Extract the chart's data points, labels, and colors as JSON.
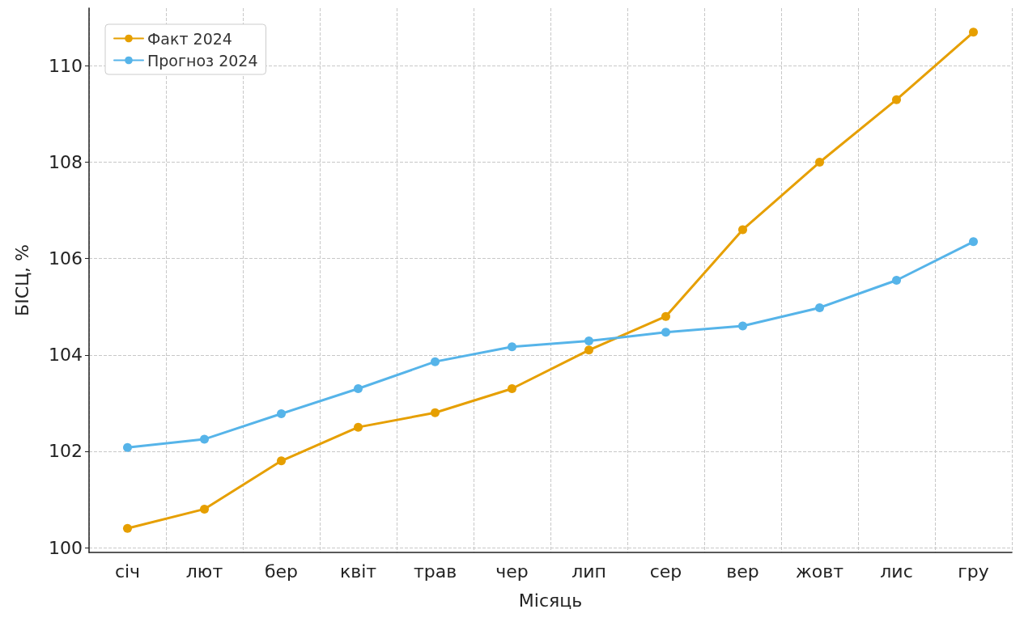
{
  "chart_data": {
    "type": "line",
    "xlabel": "Місяць",
    "ylabel": "БІСЦ, %",
    "categories": [
      "січ",
      "лют",
      "бер",
      "квіт",
      "трав",
      "чер",
      "лип",
      "сер",
      "вер",
      "жовт",
      "лис",
      "гру"
    ],
    "series": [
      {
        "name": "Факт 2024",
        "color": "#e69f00",
        "values": [
          100.4,
          100.8,
          101.8,
          102.5,
          102.8,
          103.3,
          104.1,
          104.8,
          106.6,
          108.0,
          109.3,
          110.7
        ]
      },
      {
        "name": "Прогноз 2024",
        "color": "#56b4e9",
        "values": [
          102.08,
          102.25,
          102.78,
          103.3,
          103.86,
          104.17,
          104.29,
          104.47,
          104.6,
          104.98,
          105.55,
          106.35
        ]
      }
    ],
    "ylim": [
      99.9,
      111.2
    ],
    "yticks": [
      100,
      102,
      104,
      106,
      108,
      110
    ],
    "grid": true,
    "legend": "top left",
    "marker": "circle",
    "line_style": "solid"
  }
}
